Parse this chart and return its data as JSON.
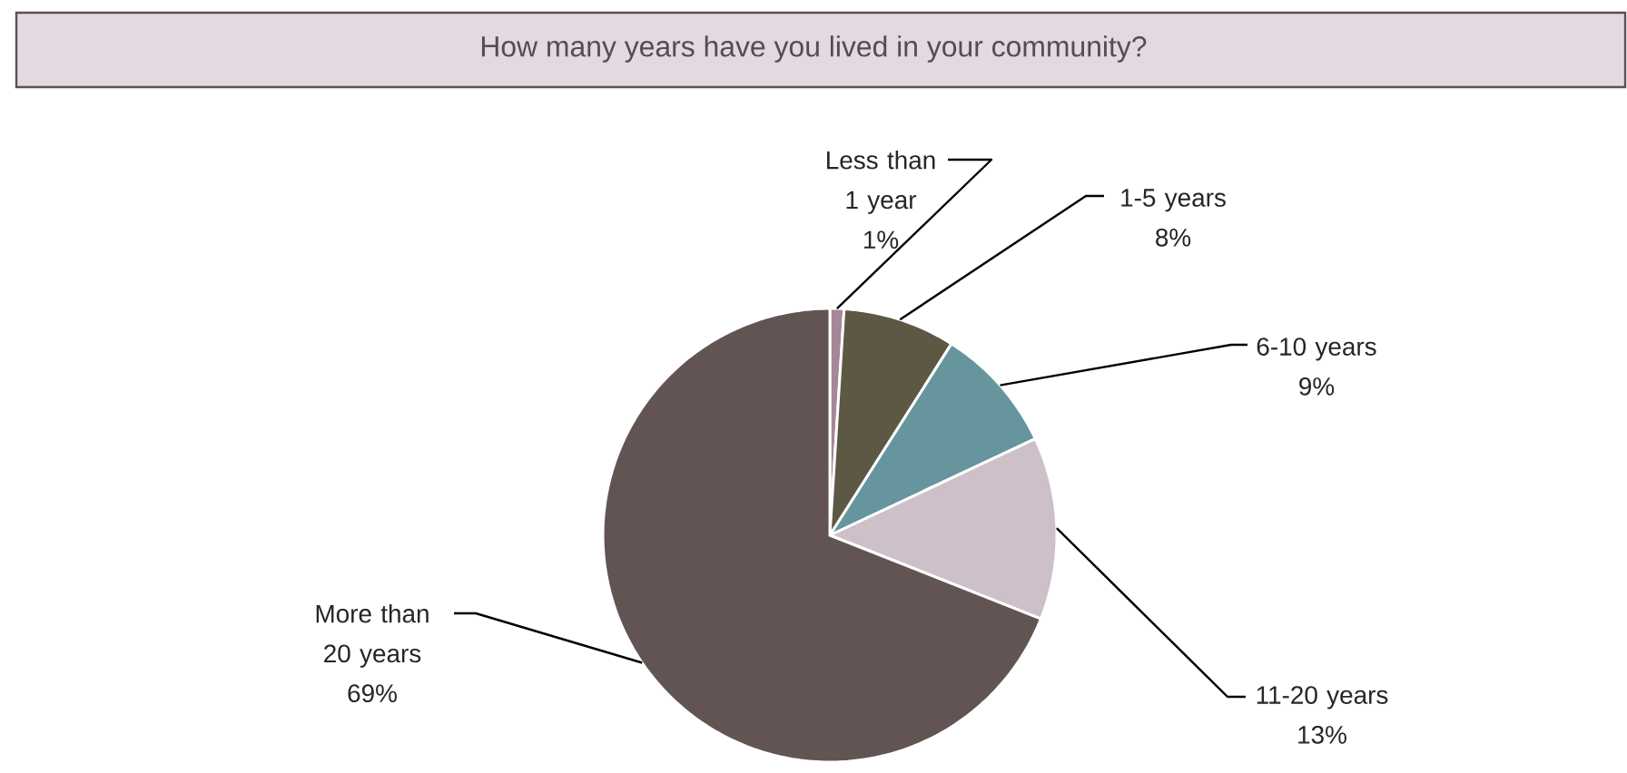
{
  "chart_data": {
    "type": "pie",
    "title": "How many years have you lived in your community?",
    "categories": [
      "Less than 1 year",
      "1-5 years",
      "6-10 years",
      "11-20 years",
      "More than 20 years"
    ],
    "values": [
      1,
      8,
      9,
      13,
      69
    ],
    "colors": [
      "#a58798",
      "#5c5843",
      "#66959e",
      "#cdc0c9",
      "#635454"
    ],
    "value_labels": [
      "1%",
      "8%",
      "9%",
      "13%",
      "69%"
    ]
  }
}
